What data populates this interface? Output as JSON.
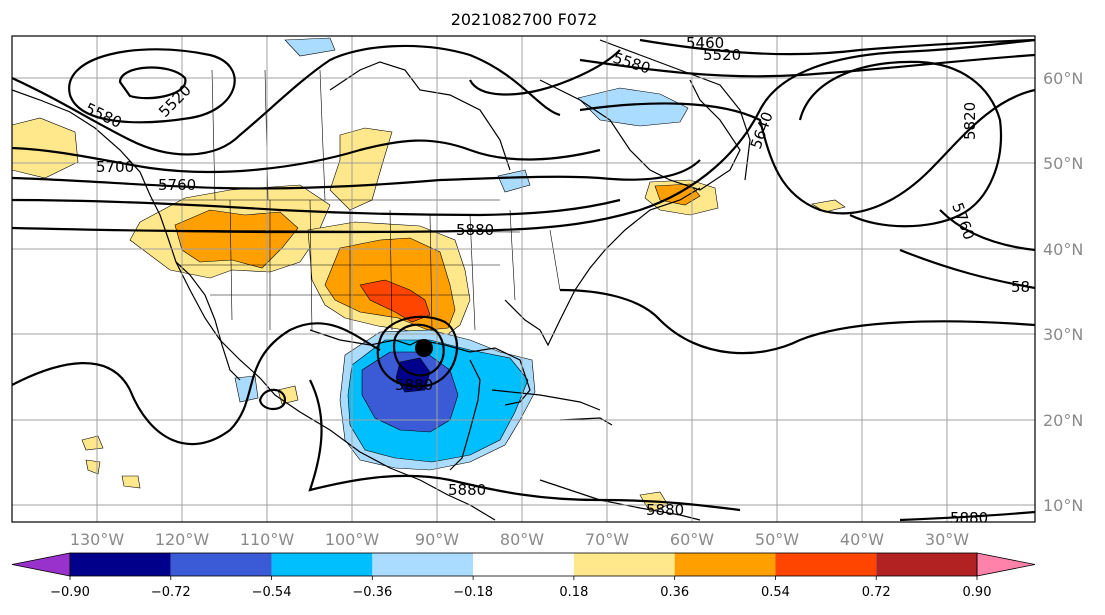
{
  "title": "2021082700 F072",
  "map": {
    "lon_labels": [
      "130°W",
      "120°W",
      "110°W",
      "100°W",
      "90°W",
      "80°W",
      "70°W",
      "60°W",
      "50°W",
      "40°W",
      "30°W"
    ],
    "lat_labels": [
      "60°N",
      "50°N",
      "40°N",
      "30°N",
      "20°N",
      "10°N"
    ],
    "contour_labels": [
      "5460",
      "5520",
      "5580",
      "5520",
      "5580",
      "5640",
      "5820",
      "5700",
      "5760",
      "5880",
      "5760",
      "58",
      "5880",
      "5880",
      "5880",
      "5880"
    ]
  },
  "colorbar": {
    "ticks": [
      "−0.90",
      "−0.72",
      "−0.54",
      "−0.36",
      "−0.18",
      "0.18",
      "0.36",
      "0.54",
      "0.72",
      "0.90"
    ],
    "colors": [
      "#9932cc",
      "#00008b",
      "#3b5bd6",
      "#00bfff",
      "#aadcff",
      "#ffffff",
      "#ffe88c",
      "#ffa000",
      "#ff4500",
      "#b22222",
      "#ff82ab"
    ],
    "extend": "both"
  }
}
